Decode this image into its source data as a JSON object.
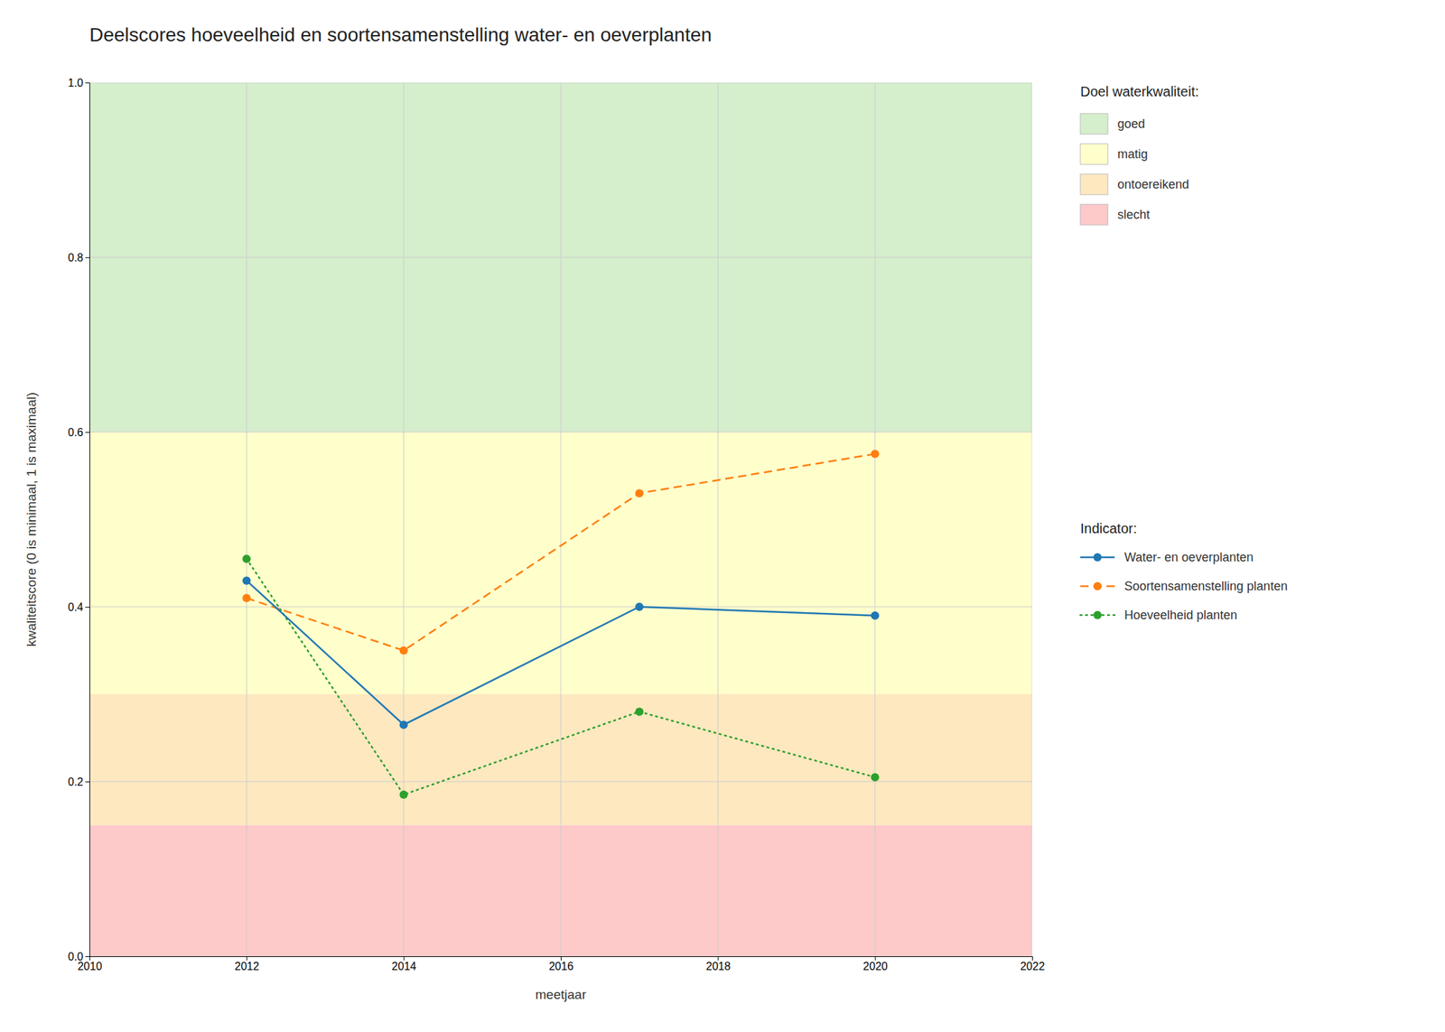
{
  "chart_data": {
    "type": "line",
    "title": "Deelscores hoeveelheid en soortensamenstelling water- en oeverplanten",
    "xlabel": "meetjaar",
    "ylabel": "kwaliteitscore (0 is minimaal, 1 is maximaal)",
    "xlim": [
      2010,
      2022
    ],
    "ylim": [
      0.0,
      1.0
    ],
    "xticks": [
      2010,
      2012,
      2014,
      2016,
      2018,
      2020,
      2022
    ],
    "yticks": [
      {
        "value": 0.0,
        "label": "0.0"
      },
      0.2,
      0.4,
      0.6,
      0.8,
      {
        "value": 1.0,
        "label": "1.0"
      }
    ],
    "grid": true,
    "legend": "right",
    "x": [
      2012,
      2014,
      2017,
      2020
    ],
    "series": [
      {
        "name": "Water- en oeverplanten",
        "values": [
          0.43,
          0.265,
          0.4,
          0.39
        ],
        "line_style": "solid",
        "marker": "circle"
      },
      {
        "name": "Soortensamenstelling planten",
        "values": [
          0.41,
          0.35,
          0.53,
          0.575
        ],
        "line_style": "dashed",
        "marker": "circle"
      },
      {
        "name": "Hoeveelheid planten",
        "values": [
          0.455,
          0.185,
          0.28,
          0.205
        ],
        "line_style": "dotted",
        "marker": "circle"
      }
    ],
    "series_legend_title": "Indicator:",
    "zones": {
      "title": "Doel waterkwaliteit:",
      "items": [
        {
          "name": "goed",
          "ymin": 0.6,
          "ymax": 1.0,
          "color": "#d5eecc"
        },
        {
          "name": "matig",
          "ymin": 0.3,
          "ymax": 0.6,
          "color": "#ffffcc"
        },
        {
          "name": "ontoereikend",
          "ymin": 0.15,
          "ymax": 0.3,
          "color": "#fde8c0"
        },
        {
          "name": "slecht",
          "ymin": 0.0,
          "ymax": 0.15,
          "color": "#fdc9c9"
        }
      ]
    }
  }
}
